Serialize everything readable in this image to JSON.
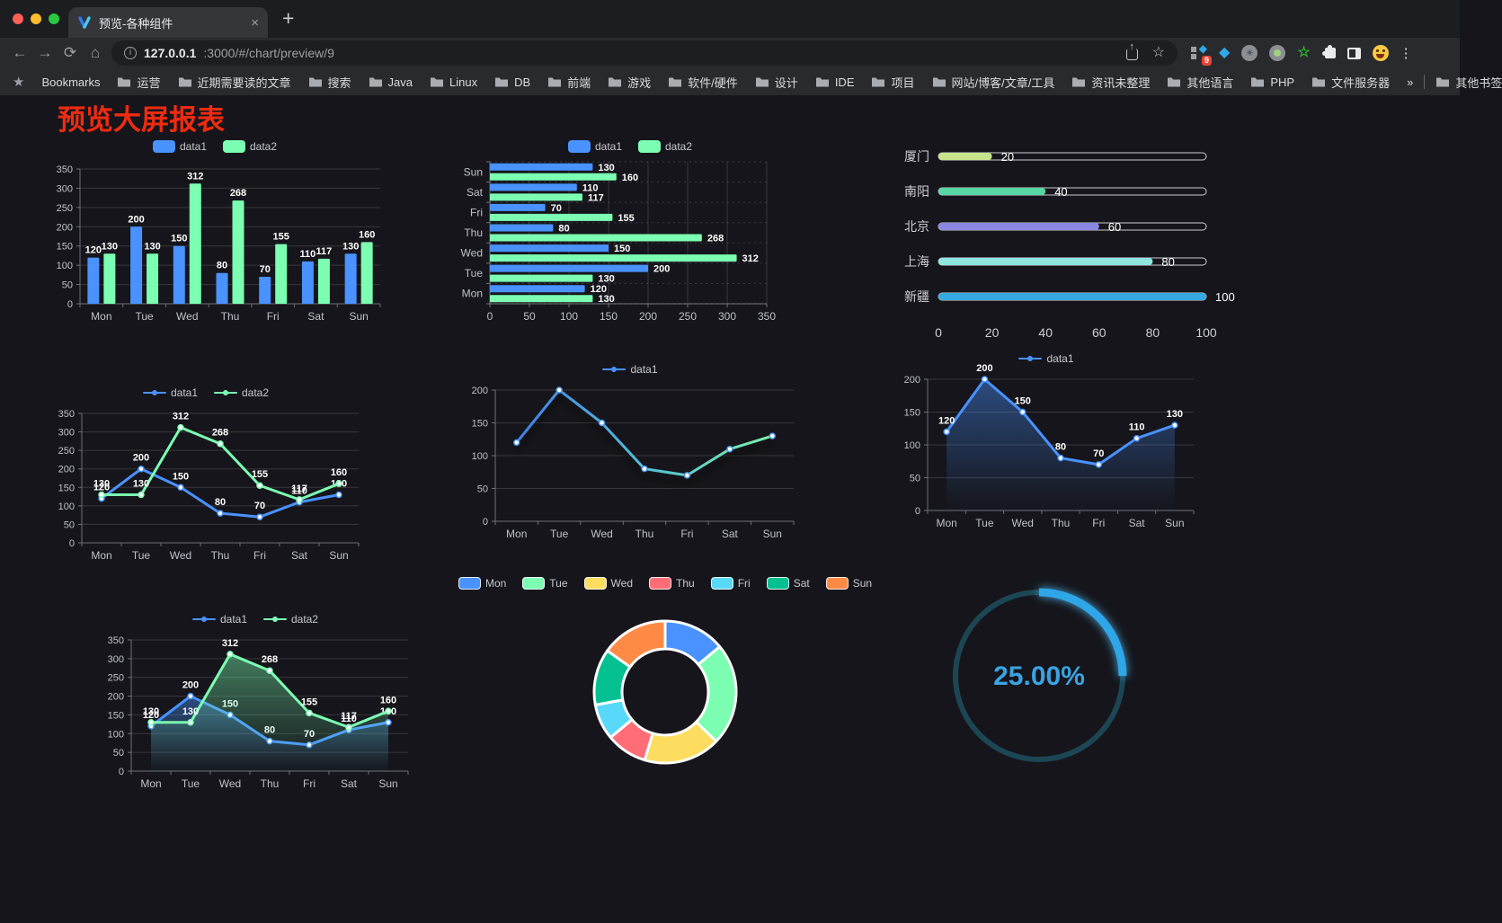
{
  "browser": {
    "tab_title": "预览-各种组件",
    "url_host": "127.0.0.1",
    "url_path": ":3000/#/chart/preview/9",
    "bookmarks_label": "Bookmarks",
    "bookmarks": [
      "运营",
      "近期需要读的文章",
      "搜索",
      "Java",
      "Linux",
      "DB",
      "前端",
      "游戏",
      "软件/硬件",
      "设计",
      "IDE",
      "项目",
      "网站/博客/文章/工具",
      "资讯未整理",
      "其他语言",
      "PHP",
      "文件服务器"
    ],
    "overflow_chevron": "»",
    "other_bookmarks": "其他书签",
    "extension_badge": "9",
    "new_tab_label": "+",
    "tab_close_label": "×",
    "back_icon": "←",
    "forward_icon": "→",
    "reload_icon": "⟳",
    "home_icon": "⌂",
    "info_icon": "i",
    "star_icon": "☆",
    "kebab_icon": "⋮",
    "gem_icon": "◆",
    "dia_icon": "◆",
    "asterisk_icon": "✳",
    "green_star_icon": "☆"
  },
  "page": {
    "title": "预览大屏报表",
    "title_color": "#ee2b10"
  },
  "chart_data": [
    {
      "id": "grouped-bar",
      "type": "bar",
      "orientation": "vertical",
      "categories": [
        "Mon",
        "Tue",
        "Wed",
        "Thu",
        "Fri",
        "Sat",
        "Sun"
      ],
      "series": [
        {
          "name": "data1",
          "color": "#4992ff",
          "values": [
            120,
            200,
            150,
            80,
            70,
            110,
            130
          ]
        },
        {
          "name": "data2",
          "color": "#7cffb2",
          "values": [
            130,
            130,
            312,
            268,
            155,
            117,
            160
          ]
        }
      ],
      "ylim": [
        0,
        350
      ],
      "yticks": [
        0,
        50,
        100,
        150,
        200,
        250,
        300,
        350
      ],
      "value_labels": true,
      "grid": true,
      "legend": {
        "position": "top",
        "marker": "rect"
      }
    },
    {
      "id": "grouped-bar-horizontal",
      "type": "bar",
      "orientation": "horizontal",
      "categories": [
        "Sun",
        "Sat",
        "Fri",
        "Thu",
        "Wed",
        "Tue",
        "Mon"
      ],
      "series": [
        {
          "name": "data1",
          "color": "#4992ff",
          "values": [
            130,
            110,
            70,
            80,
            150,
            200,
            120
          ]
        },
        {
          "name": "data2",
          "color": "#7cffb2",
          "values": [
            160,
            117,
            155,
            268,
            312,
            130,
            130
          ]
        }
      ],
      "xlim": [
        0,
        350
      ],
      "xticks": [
        0,
        50,
        100,
        150,
        200,
        250,
        300,
        350
      ],
      "value_labels": true,
      "grid": true,
      "legend": {
        "position": "top",
        "marker": "rect"
      }
    },
    {
      "id": "city-progress-bars",
      "type": "bar",
      "variant": "progress",
      "orientation": "horizontal",
      "categories": [
        "厦门",
        "南阳",
        "北京",
        "上海",
        "新疆"
      ],
      "values": [
        20,
        40,
        60,
        80,
        100
      ],
      "colors": [
        "#c6e48b",
        "#58d6a4",
        "#8a87e0",
        "#8fe6df",
        "#35a9e0"
      ],
      "xlim": [
        0,
        100
      ],
      "xticks": [
        0,
        20,
        40,
        60,
        80,
        100
      ],
      "value_labels": true
    },
    {
      "id": "line-two-series",
      "type": "line",
      "categories": [
        "Mon",
        "Tue",
        "Wed",
        "Thu",
        "Fri",
        "Sat",
        "Sun"
      ],
      "series": [
        {
          "name": "data1",
          "color": "#4992ff",
          "values": [
            120,
            200,
            150,
            80,
            70,
            110,
            130
          ]
        },
        {
          "name": "data2",
          "color": "#7cffb2",
          "values": [
            130,
            130,
            312,
            268,
            155,
            117,
            160
          ]
        }
      ],
      "ylim": [
        0,
        350
      ],
      "yticks": [
        0,
        50,
        100,
        150,
        200,
        250,
        300,
        350
      ],
      "value_labels": true,
      "grid": true,
      "legend": {
        "position": "top",
        "marker": "circle"
      }
    },
    {
      "id": "line-gradient",
      "type": "line",
      "categories": [
        "Mon",
        "Tue",
        "Wed",
        "Thu",
        "Fri",
        "Sat",
        "Sun"
      ],
      "series": [
        {
          "name": "data1",
          "color": "#4992ff",
          "stroke_gradient": [
            "#3f7fe8",
            "#52c0d5",
            "#7cf0aa"
          ],
          "values": [
            120,
            200,
            150,
            80,
            70,
            110,
            130
          ]
        }
      ],
      "ylim": [
        0,
        200
      ],
      "yticks": [
        0,
        50,
        100,
        150,
        200
      ],
      "value_labels": false,
      "grid": true,
      "legend": {
        "position": "top",
        "marker": "circle"
      }
    },
    {
      "id": "area-single",
      "type": "area",
      "categories": [
        "Mon",
        "Tue",
        "Wed",
        "Thu",
        "Fri",
        "Sat",
        "Sun"
      ],
      "series": [
        {
          "name": "data1",
          "color": "#4992ff",
          "values": [
            120,
            200,
            150,
            80,
            70,
            110,
            130
          ]
        }
      ],
      "ylim": [
        0,
        200
      ],
      "yticks": [
        0,
        50,
        100,
        150,
        200
      ],
      "value_labels": true,
      "grid": true,
      "legend": {
        "position": "top",
        "marker": "circle"
      }
    },
    {
      "id": "area-two-series",
      "type": "area",
      "categories": [
        "Mon",
        "Tue",
        "Wed",
        "Thu",
        "Fri",
        "Sat",
        "Sun"
      ],
      "series": [
        {
          "name": "data1",
          "color": "#4992ff",
          "values": [
            120,
            200,
            150,
            80,
            70,
            110,
            130
          ]
        },
        {
          "name": "data2",
          "color": "#7cffb2",
          "values": [
            130,
            130,
            312,
            268,
            155,
            117,
            160
          ]
        }
      ],
      "ylim": [
        0,
        350
      ],
      "yticks": [
        0,
        50,
        100,
        150,
        200,
        250,
        300,
        350
      ],
      "value_labels": true,
      "grid": true,
      "legend": {
        "position": "top",
        "marker": "circle"
      }
    },
    {
      "id": "donut-pie",
      "type": "pie",
      "labels": [
        "Mon",
        "Tue",
        "Wed",
        "Thu",
        "Fri",
        "Sat",
        "Sun"
      ],
      "values": [
        120,
        200,
        150,
        80,
        70,
        110,
        130
      ],
      "colors": [
        "#4992ff",
        "#7cffb2",
        "#fddd60",
        "#ff6e76",
        "#58d9f9",
        "#05c091",
        "#ff8a45"
      ],
      "inner_radius_ratio": 0.6,
      "legend_position": "top"
    },
    {
      "id": "gauge-progress",
      "type": "gauge",
      "percent": 25,
      "label": "25.00%",
      "color": "#2ea6e8",
      "track_color": "#1c4654",
      "label_color": "#3aa3e2"
    }
  ]
}
